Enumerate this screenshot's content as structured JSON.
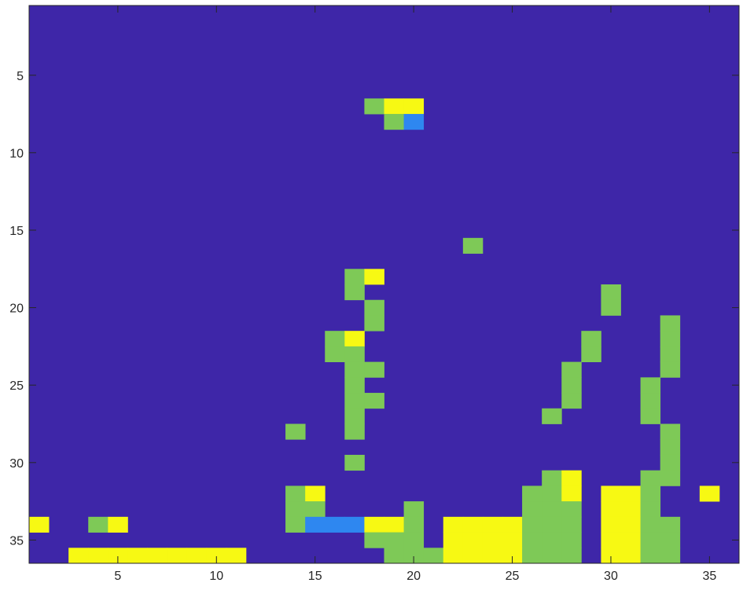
{
  "chart_data": {
    "type": "heatmap",
    "title": "",
    "xlabel": "",
    "ylabel": "",
    "x_range": [
      0.5,
      36.5
    ],
    "y_range": [
      0.5,
      36.5
    ],
    "y_reversed": true,
    "x_ticks": [
      5,
      10,
      15,
      20,
      25,
      30,
      35
    ],
    "y_ticks": [
      5,
      10,
      15,
      20,
      25,
      30,
      35
    ],
    "x_tick_labels": [
      "5",
      "10",
      "15",
      "20",
      "25",
      "30",
      "35"
    ],
    "y_tick_labels": [
      "5",
      "10",
      "15",
      "20",
      "25",
      "30",
      "35"
    ],
    "grid": false,
    "colormap": "parula",
    "background_value": 0,
    "value_colors": {
      "0": "#3e26a8",
      "1": "#2e87f0",
      "2": "#7ec957",
      "3": "#f7f913"
    },
    "cells": [
      {
        "x": 18,
        "y": 7,
        "v": 2
      },
      {
        "x": 19,
        "y": 7,
        "v": 3
      },
      {
        "x": 20,
        "y": 7,
        "v": 3
      },
      {
        "x": 19,
        "y": 8,
        "v": 2
      },
      {
        "x": 20,
        "y": 8,
        "v": 1
      },
      {
        "x": 23,
        "y": 16,
        "v": 2
      },
      {
        "x": 17,
        "y": 18,
        "v": 2
      },
      {
        "x": 18,
        "y": 18,
        "v": 3
      },
      {
        "x": 17,
        "y": 19,
        "v": 2
      },
      {
        "x": 30,
        "y": 19,
        "v": 2
      },
      {
        "x": 18,
        "y": 20,
        "v": 2
      },
      {
        "x": 30,
        "y": 20,
        "v": 2
      },
      {
        "x": 18,
        "y": 21,
        "v": 2
      },
      {
        "x": 33,
        "y": 21,
        "v": 2
      },
      {
        "x": 16,
        "y": 22,
        "v": 2
      },
      {
        "x": 17,
        "y": 22,
        "v": 3
      },
      {
        "x": 29,
        "y": 22,
        "v": 2
      },
      {
        "x": 33,
        "y": 22,
        "v": 2
      },
      {
        "x": 16,
        "y": 23,
        "v": 2
      },
      {
        "x": 17,
        "y": 23,
        "v": 2
      },
      {
        "x": 29,
        "y": 23,
        "v": 2
      },
      {
        "x": 33,
        "y": 23,
        "v": 2
      },
      {
        "x": 17,
        "y": 24,
        "v": 2
      },
      {
        "x": 18,
        "y": 24,
        "v": 2
      },
      {
        "x": 28,
        "y": 24,
        "v": 2
      },
      {
        "x": 33,
        "y": 24,
        "v": 2
      },
      {
        "x": 17,
        "y": 25,
        "v": 2
      },
      {
        "x": 28,
        "y": 25,
        "v": 2
      },
      {
        "x": 32,
        "y": 25,
        "v": 2
      },
      {
        "x": 17,
        "y": 26,
        "v": 2
      },
      {
        "x": 18,
        "y": 26,
        "v": 2
      },
      {
        "x": 28,
        "y": 26,
        "v": 2
      },
      {
        "x": 32,
        "y": 26,
        "v": 2
      },
      {
        "x": 17,
        "y": 27,
        "v": 2
      },
      {
        "x": 27,
        "y": 27,
        "v": 2
      },
      {
        "x": 32,
        "y": 27,
        "v": 2
      },
      {
        "x": 14,
        "y": 28,
        "v": 2
      },
      {
        "x": 17,
        "y": 28,
        "v": 2
      },
      {
        "x": 33,
        "y": 28,
        "v": 2
      },
      {
        "x": 33,
        "y": 29,
        "v": 2
      },
      {
        "x": 17,
        "y": 30,
        "v": 2
      },
      {
        "x": 33,
        "y": 30,
        "v": 2
      },
      {
        "x": 27,
        "y": 31,
        "v": 2
      },
      {
        "x": 28,
        "y": 31,
        "v": 3
      },
      {
        "x": 32,
        "y": 31,
        "v": 2
      },
      {
        "x": 33,
        "y": 31,
        "v": 2
      },
      {
        "x": 14,
        "y": 32,
        "v": 2
      },
      {
        "x": 15,
        "y": 32,
        "v": 3
      },
      {
        "x": 26,
        "y": 32,
        "v": 2
      },
      {
        "x": 27,
        "y": 32,
        "v": 2
      },
      {
        "x": 28,
        "y": 32,
        "v": 3
      },
      {
        "x": 30,
        "y": 32,
        "v": 3
      },
      {
        "x": 31,
        "y": 32,
        "v": 3
      },
      {
        "x": 32,
        "y": 32,
        "v": 2
      },
      {
        "x": 35,
        "y": 32,
        "v": 3
      },
      {
        "x": 14,
        "y": 33,
        "v": 2
      },
      {
        "x": 15,
        "y": 33,
        "v": 2
      },
      {
        "x": 20,
        "y": 33,
        "v": 2
      },
      {
        "x": 26,
        "y": 33,
        "v": 2
      },
      {
        "x": 27,
        "y": 33,
        "v": 2
      },
      {
        "x": 28,
        "y": 33,
        "v": 2
      },
      {
        "x": 30,
        "y": 33,
        "v": 3
      },
      {
        "x": 31,
        "y": 33,
        "v": 3
      },
      {
        "x": 32,
        "y": 33,
        "v": 2
      },
      {
        "x": 1,
        "y": 34,
        "v": 3
      },
      {
        "x": 4,
        "y": 34,
        "v": 2
      },
      {
        "x": 5,
        "y": 34,
        "v": 3
      },
      {
        "x": 14,
        "y": 34,
        "v": 2
      },
      {
        "x": 15,
        "y": 34,
        "v": 1
      },
      {
        "x": 16,
        "y": 34,
        "v": 1
      },
      {
        "x": 17,
        "y": 34,
        "v": 1
      },
      {
        "x": 18,
        "y": 34,
        "v": 3
      },
      {
        "x": 19,
        "y": 34,
        "v": 3
      },
      {
        "x": 20,
        "y": 34,
        "v": 2
      },
      {
        "x": 22,
        "y": 34,
        "v": 3
      },
      {
        "x": 23,
        "y": 34,
        "v": 3
      },
      {
        "x": 24,
        "y": 34,
        "v": 3
      },
      {
        "x": 25,
        "y": 34,
        "v": 3
      },
      {
        "x": 26,
        "y": 34,
        "v": 2
      },
      {
        "x": 27,
        "y": 34,
        "v": 2
      },
      {
        "x": 28,
        "y": 34,
        "v": 2
      },
      {
        "x": 30,
        "y": 34,
        "v": 3
      },
      {
        "x": 31,
        "y": 34,
        "v": 3
      },
      {
        "x": 32,
        "y": 34,
        "v": 2
      },
      {
        "x": 33,
        "y": 34,
        "v": 2
      },
      {
        "x": 18,
        "y": 35,
        "v": 2
      },
      {
        "x": 19,
        "y": 35,
        "v": 2
      },
      {
        "x": 20,
        "y": 35,
        "v": 2
      },
      {
        "x": 22,
        "y": 35,
        "v": 3
      },
      {
        "x": 23,
        "y": 35,
        "v": 3
      },
      {
        "x": 24,
        "y": 35,
        "v": 3
      },
      {
        "x": 25,
        "y": 35,
        "v": 3
      },
      {
        "x": 26,
        "y": 35,
        "v": 2
      },
      {
        "x": 27,
        "y": 35,
        "v": 2
      },
      {
        "x": 28,
        "y": 35,
        "v": 2
      },
      {
        "x": 30,
        "y": 35,
        "v": 3
      },
      {
        "x": 31,
        "y": 35,
        "v": 3
      },
      {
        "x": 32,
        "y": 35,
        "v": 2
      },
      {
        "x": 33,
        "y": 35,
        "v": 2
      },
      {
        "x": 3,
        "y": 36,
        "v": 3
      },
      {
        "x": 4,
        "y": 36,
        "v": 3
      },
      {
        "x": 5,
        "y": 36,
        "v": 3
      },
      {
        "x": 6,
        "y": 36,
        "v": 3
      },
      {
        "x": 7,
        "y": 36,
        "v": 3
      },
      {
        "x": 8,
        "y": 36,
        "v": 3
      },
      {
        "x": 9,
        "y": 36,
        "v": 3
      },
      {
        "x": 10,
        "y": 36,
        "v": 3
      },
      {
        "x": 11,
        "y": 36,
        "v": 3
      },
      {
        "x": 19,
        "y": 36,
        "v": 2
      },
      {
        "x": 20,
        "y": 36,
        "v": 2
      },
      {
        "x": 21,
        "y": 36,
        "v": 2
      },
      {
        "x": 22,
        "y": 36,
        "v": 3
      },
      {
        "x": 23,
        "y": 36,
        "v": 3
      },
      {
        "x": 24,
        "y": 36,
        "v": 3
      },
      {
        "x": 25,
        "y": 36,
        "v": 3
      },
      {
        "x": 26,
        "y": 36,
        "v": 2
      },
      {
        "x": 27,
        "y": 36,
        "v": 2
      },
      {
        "x": 28,
        "y": 36,
        "v": 2
      },
      {
        "x": 30,
        "y": 36,
        "v": 3
      },
      {
        "x": 31,
        "y": 36,
        "v": 3
      },
      {
        "x": 32,
        "y": 36,
        "v": 2
      },
      {
        "x": 33,
        "y": 36,
        "v": 2
      }
    ]
  }
}
